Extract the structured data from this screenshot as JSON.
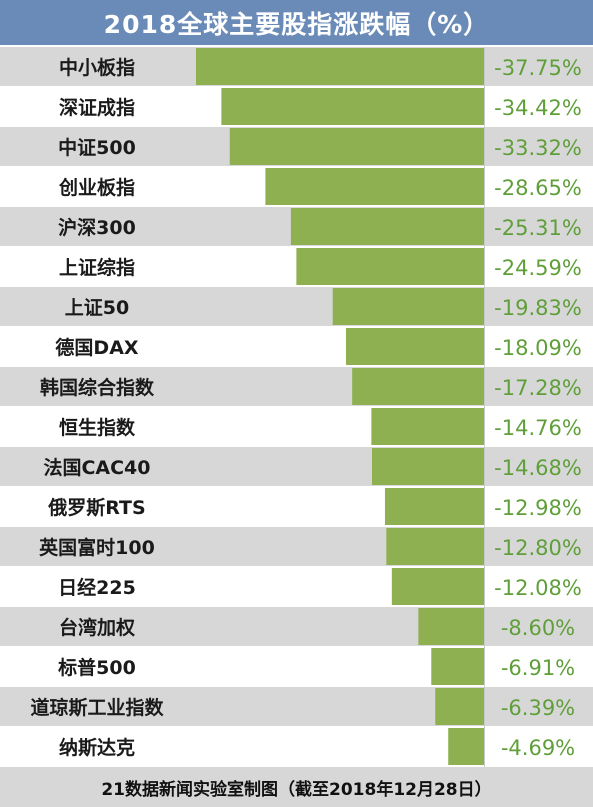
{
  "chart_data": {
    "type": "bar",
    "title": "2018全球主要股指涨跌幅（%）",
    "footer": "21数据新闻实验室制图（截至2018年12月28日）",
    "categories": [
      "中小板指",
      "深证成指",
      "中证500",
      "创业板指",
      "沪深300",
      "上证综指",
      "上证50",
      "德国DAX",
      "韩国综合指数",
      "恒生指数",
      "法国CAC40",
      "俄罗斯RTS",
      "英国富时100",
      "日经225",
      "台湾加权",
      "标普500",
      "道琼斯工业指数",
      "纳斯达克"
    ],
    "values": [
      -37.75,
      -34.42,
      -33.32,
      -28.65,
      -25.31,
      -24.59,
      -19.83,
      -18.09,
      -17.28,
      -14.76,
      -14.68,
      -12.98,
      -12.8,
      -12.08,
      -8.6,
      -6.91,
      -6.39,
      -4.69
    ],
    "value_labels": [
      "-37.75%",
      "-34.42%",
      "-33.32%",
      "-28.65%",
      "-25.31%",
      "-24.59%",
      "-19.83%",
      "-18.09%",
      "-17.28%",
      "-14.76%",
      "-14.68%",
      "-12.98%",
      "-12.80%",
      "-12.08%",
      "-8.60%",
      "-6.91%",
      "-6.39%",
      "-4.69%"
    ],
    "colors": {
      "bar": "#8fb050",
      "value_text": "#5f9f3a",
      "header": "#6a8bb8",
      "stripe": "#d7d7d7",
      "footer": "#d7d7d7"
    }
  }
}
